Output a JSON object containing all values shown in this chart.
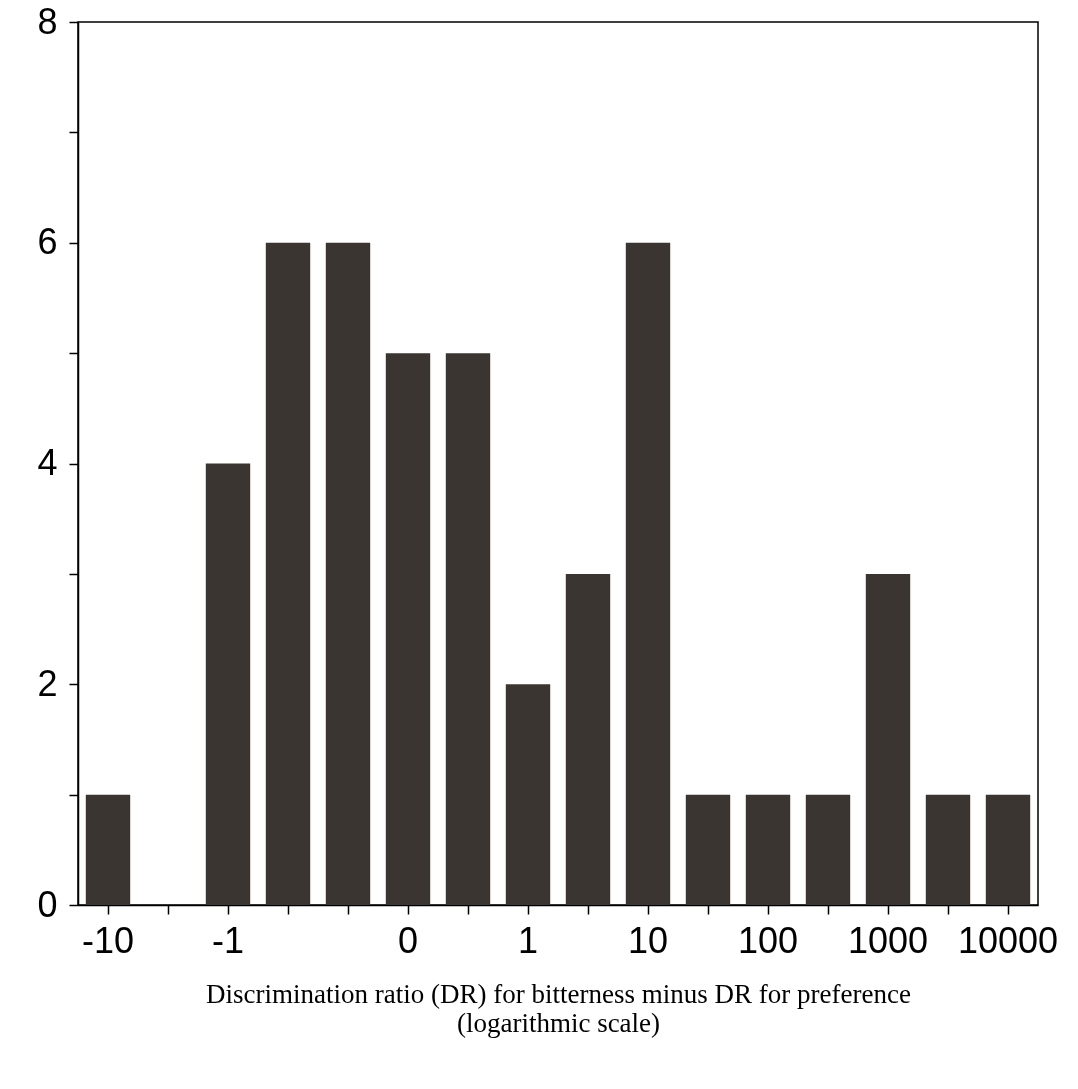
{
  "chart_data": {
    "type": "bar",
    "xlabel": "Discrimination ratio (DR) for bitterness minus DR for preference\n(logarithmic scale)",
    "categories": [
      "-10",
      null,
      "-1",
      null,
      null,
      "0",
      null,
      "1",
      null,
      "10",
      null,
      "100",
      null,
      "1000",
      null,
      "10000"
    ],
    "values": [
      1,
      0,
      4,
      6,
      6,
      5,
      5,
      2,
      3,
      6,
      1,
      1,
      1,
      3,
      1,
      1
    ],
    "color": "#3a3531",
    "ylim": [
      0,
      8
    ],
    "yticks": [
      0,
      {
        "value": 1,
        "label": null
      },
      2,
      {
        "value": 3,
        "label": null
      },
      4,
      {
        "value": 5,
        "label": null
      },
      6,
      {
        "value": 7,
        "label": null
      },
      8
    ],
    "grid": false
  }
}
